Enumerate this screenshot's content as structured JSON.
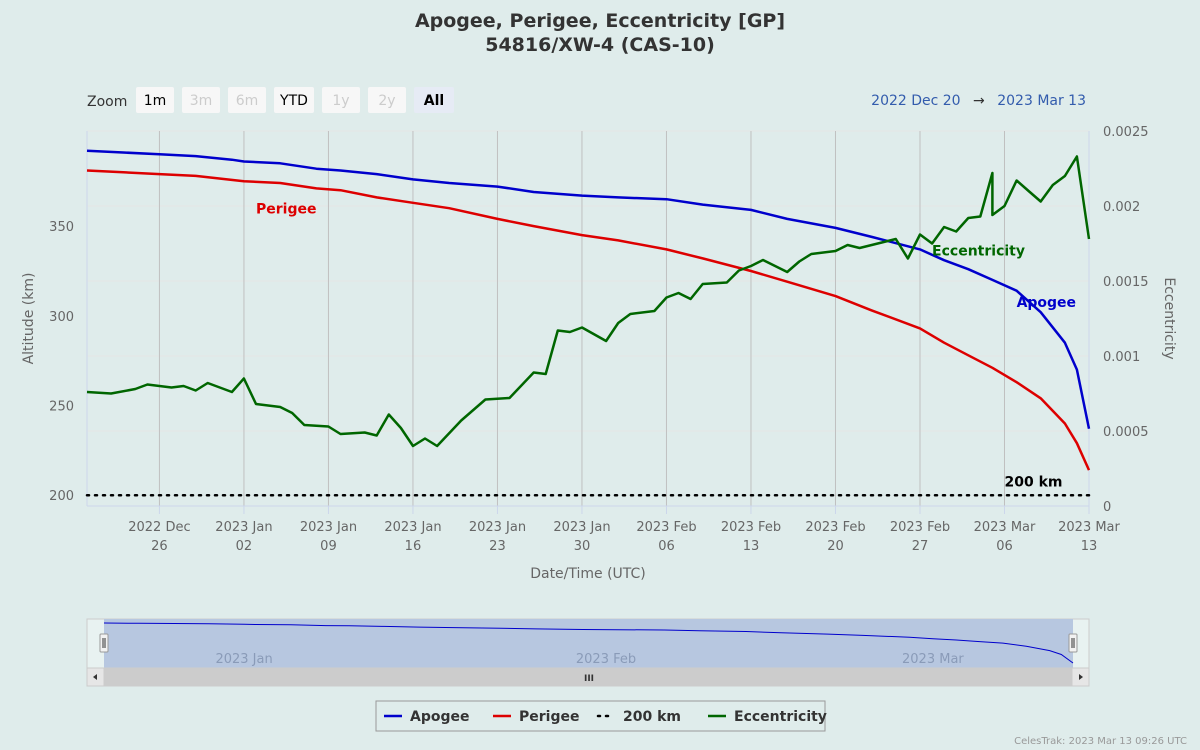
{
  "title": "Apogee, Perigee, Eccentricity [GP]",
  "subtitle": "54816/XW-4 (CAS-10)",
  "zoom": {
    "label": "Zoom",
    "buttons": [
      {
        "label": "1m",
        "state": "normal"
      },
      {
        "label": "3m",
        "state": "disabled"
      },
      {
        "label": "6m",
        "state": "disabled"
      },
      {
        "label": "YTD",
        "state": "normal"
      },
      {
        "label": "1y",
        "state": "disabled"
      },
      {
        "label": "2y",
        "state": "disabled"
      },
      {
        "label": "All",
        "state": "selected"
      }
    ]
  },
  "range": {
    "from": "2022 Dec 20",
    "arrow": "→",
    "to": "2023 Mar 13"
  },
  "credit": "CelesTrak: 2023 Mar 13 09:26 UTC",
  "colors": {
    "apogee": "#0000cc",
    "perigee": "#dd0000",
    "eccentricity": "#006600",
    "reference": "#000000",
    "grid": "#e6e6e6",
    "vgrid": "#c0c0c0",
    "navigator_fill": "#b7c7e0"
  },
  "chart_data": {
    "type": "line",
    "xlabel": "Date/Time (UTC)",
    "ylabel": "Altitude (km)",
    "y2label": "Eccentricity",
    "xlim": [
      "2022-12-20",
      "2023-03-13"
    ],
    "ylim": [
      194,
      403
    ],
    "y2lim": [
      0,
      0.0025
    ],
    "x_ticks": [
      {
        "date": "2022-12-26",
        "line1": "2022 Dec",
        "line2": "26"
      },
      {
        "date": "2023-01-02",
        "line1": "2023 Jan",
        "line2": "02"
      },
      {
        "date": "2023-01-09",
        "line1": "2023 Jan",
        "line2": "09"
      },
      {
        "date": "2023-01-16",
        "line1": "2023 Jan",
        "line2": "16"
      },
      {
        "date": "2023-01-23",
        "line1": "2023 Jan",
        "line2": "23"
      },
      {
        "date": "2023-01-30",
        "line1": "2023 Jan",
        "line2": "30"
      },
      {
        "date": "2023-02-06",
        "line1": "2023 Feb",
        "line2": "06"
      },
      {
        "date": "2023-02-13",
        "line1": "2023 Feb",
        "line2": "13"
      },
      {
        "date": "2023-02-20",
        "line1": "2023 Feb",
        "line2": "20"
      },
      {
        "date": "2023-02-27",
        "line1": "2023 Feb",
        "line2": "27"
      },
      {
        "date": "2023-03-06",
        "line1": "2023 Mar",
        "line2": "06"
      },
      {
        "date": "2023-03-13",
        "line1": "2023 Mar",
        "line2": "13"
      }
    ],
    "y_ticks": [
      "200",
      "250",
      "300",
      "350"
    ],
    "y_tick_values": [
      200,
      250,
      300,
      350
    ],
    "y2_ticks": [
      "0",
      "0.0005",
      "0.001",
      "0.0015",
      "0.002",
      "0.0025"
    ],
    "y2_tick_values": [
      0,
      0.0005,
      0.001,
      0.0015,
      0.002,
      0.0025
    ],
    "series": [
      {
        "name": "Apogee",
        "axis": "left",
        "color": "#0000cc",
        "label": "Apogee",
        "label_at": [
          "2023-03-07",
          305
        ],
        "points": [
          [
            "2022-12-20",
            392
          ],
          [
            "2022-12-23",
            391
          ],
          [
            "2022-12-26",
            390
          ],
          [
            "2022-12-29",
            389
          ],
          [
            "2023-01-01",
            387
          ],
          [
            "2023-01-02",
            386
          ],
          [
            "2023-01-05",
            385
          ],
          [
            "2023-01-08",
            382
          ],
          [
            "2023-01-10",
            381
          ],
          [
            "2023-01-13",
            379
          ],
          [
            "2023-01-16",
            376
          ],
          [
            "2023-01-19",
            374
          ],
          [
            "2023-01-23",
            372
          ],
          [
            "2023-01-26",
            369
          ],
          [
            "2023-01-30",
            367
          ],
          [
            "2023-02-02",
            366
          ],
          [
            "2023-02-06",
            365
          ],
          [
            "2023-02-09",
            362
          ],
          [
            "2023-02-13",
            359
          ],
          [
            "2023-02-16",
            354
          ],
          [
            "2023-02-20",
            349
          ],
          [
            "2023-02-23",
            344
          ],
          [
            "2023-02-27",
            337
          ],
          [
            "2023-03-01",
            331
          ],
          [
            "2023-03-03",
            326
          ],
          [
            "2023-03-05",
            320
          ],
          [
            "2023-03-07",
            314
          ],
          [
            "2023-03-09",
            302
          ],
          [
            "2023-03-11",
            285
          ],
          [
            "2023-03-12",
            270
          ],
          [
            "2023-03-13",
            237
          ]
        ]
      },
      {
        "name": "Perigee",
        "axis": "left",
        "color": "#dd0000",
        "label": "Perigee",
        "label_at": [
          "2023-01-03",
          357
        ],
        "points": [
          [
            "2022-12-20",
            381
          ],
          [
            "2022-12-23",
            380
          ],
          [
            "2022-12-26",
            379
          ],
          [
            "2022-12-29",
            378
          ],
          [
            "2023-01-02",
            375
          ],
          [
            "2023-01-05",
            374
          ],
          [
            "2023-01-08",
            371
          ],
          [
            "2023-01-10",
            370
          ],
          [
            "2023-01-13",
            366
          ],
          [
            "2023-01-16",
            363
          ],
          [
            "2023-01-19",
            360
          ],
          [
            "2023-01-23",
            354
          ],
          [
            "2023-01-26",
            350
          ],
          [
            "2023-01-30",
            345
          ],
          [
            "2023-02-02",
            342
          ],
          [
            "2023-02-06",
            337
          ],
          [
            "2023-02-09",
            332
          ],
          [
            "2023-02-13",
            325
          ],
          [
            "2023-02-16",
            319
          ],
          [
            "2023-02-20",
            311
          ],
          [
            "2023-02-23",
            303
          ],
          [
            "2023-02-27",
            293
          ],
          [
            "2023-03-01",
            285
          ],
          [
            "2023-03-03",
            278
          ],
          [
            "2023-03-05",
            271
          ],
          [
            "2023-03-07",
            263
          ],
          [
            "2023-03-09",
            254
          ],
          [
            "2023-03-11",
            240
          ],
          [
            "2023-03-12",
            229
          ],
          [
            "2023-03-13",
            214
          ]
        ]
      },
      {
        "name": "200 km",
        "axis": "left",
        "color": "#000000",
        "dash": true,
        "label": "200 km",
        "label_at": [
          "2023-03-06",
          205
        ],
        "points": [
          [
            "2022-12-20",
            200
          ],
          [
            "2023-03-13",
            200
          ]
        ]
      },
      {
        "name": "Eccentricity",
        "axis": "right",
        "color": "#006600",
        "label": "Eccentricity",
        "label_at": [
          "2023-02-28",
          0.00167
        ],
        "points": [
          [
            "2022-12-20",
            0.00076
          ],
          [
            "2022-12-22",
            0.00075
          ],
          [
            "2022-12-24",
            0.00078
          ],
          [
            "2022-12-25",
            0.00081
          ],
          [
            "2022-12-27",
            0.00079
          ],
          [
            "2022-12-28",
            0.0008
          ],
          [
            "2022-12-29",
            0.00077
          ],
          [
            "2022-12-30",
            0.00082
          ],
          [
            "2022-12-31",
            0.00079
          ],
          [
            "2023-01-01",
            0.00076
          ],
          [
            "2023-01-02",
            0.00085
          ],
          [
            "2023-01-03",
            0.00068
          ],
          [
            "2023-01-05",
            0.00066
          ],
          [
            "2023-01-06",
            0.00062
          ],
          [
            "2023-01-07",
            0.00054
          ],
          [
            "2023-01-09",
            0.00053
          ],
          [
            "2023-01-10",
            0.00048
          ],
          [
            "2023-01-12",
            0.00049
          ],
          [
            "2023-01-13",
            0.00047
          ],
          [
            "2023-01-14",
            0.00061
          ],
          [
            "2023-01-15",
            0.00052
          ],
          [
            "2023-01-16",
            0.0004
          ],
          [
            "2023-01-17",
            0.00045
          ],
          [
            "2023-01-18",
            0.0004
          ],
          [
            "2023-01-20",
            0.00057
          ],
          [
            "2023-01-22",
            0.00071
          ],
          [
            "2023-01-24",
            0.00072
          ],
          [
            "2023-01-26",
            0.00089
          ],
          [
            "2023-01-27",
            0.00088
          ],
          [
            "2023-01-28",
            0.00117
          ],
          [
            "2023-01-29",
            0.00116
          ],
          [
            "2023-01-30",
            0.00119
          ],
          [
            "2023-02-01",
            0.0011
          ],
          [
            "2023-02-02",
            0.00122
          ],
          [
            "2023-02-03",
            0.00128
          ],
          [
            "2023-02-05",
            0.0013
          ],
          [
            "2023-02-06",
            0.00139
          ],
          [
            "2023-02-07",
            0.00142
          ],
          [
            "2023-02-08",
            0.00138
          ],
          [
            "2023-02-09",
            0.00148
          ],
          [
            "2023-02-11",
            0.00149
          ],
          [
            "2023-02-12",
            0.00157
          ],
          [
            "2023-02-13",
            0.0016
          ],
          [
            "2023-02-14",
            0.00164
          ],
          [
            "2023-02-16",
            0.00156
          ],
          [
            "2023-02-17",
            0.00163
          ],
          [
            "2023-02-18",
            0.00168
          ],
          [
            "2023-02-20",
            0.0017
          ],
          [
            "2023-02-21",
            0.00174
          ],
          [
            "2023-02-22",
            0.00172
          ],
          [
            "2023-02-24",
            0.00176
          ],
          [
            "2023-02-25",
            0.00178
          ],
          [
            "2023-02-26",
            0.00165
          ],
          [
            "2023-02-27",
            0.00181
          ],
          [
            "2023-02-28",
            0.00175
          ],
          [
            "2023-03-01",
            0.00186
          ],
          [
            "2023-03-02",
            0.00183
          ],
          [
            "2023-03-03",
            0.00192
          ],
          [
            "2023-03-04",
            0.00193
          ],
          [
            "2023-03-05",
            0.00222
          ],
          [
            "2023-03-05",
            0.00194
          ],
          [
            "2023-03-06",
            0.002
          ],
          [
            "2023-03-07",
            0.00217
          ],
          [
            "2023-03-08",
            0.0021
          ],
          [
            "2023-03-09",
            0.00203
          ],
          [
            "2023-03-10",
            0.00214
          ],
          [
            "2023-03-11",
            0.0022
          ],
          [
            "2023-03-12",
            0.00233
          ],
          [
            "2023-03-13",
            0.00178
          ]
        ]
      }
    ],
    "legend": {
      "placement": "bottom",
      "items": [
        {
          "label": "Apogee",
          "color": "#0000cc",
          "style": "solid"
        },
        {
          "label": "Perigee",
          "color": "#dd0000",
          "style": "solid"
        },
        {
          "label": "200 km",
          "color": "#000000",
          "style": "dotted"
        },
        {
          "label": "Eccentricity",
          "color": "#006600",
          "style": "solid"
        }
      ]
    },
    "navigator": {
      "labels": [
        {
          "text": "2023 Jan",
          "date": "2023-01-01"
        },
        {
          "text": "2023 Feb",
          "date": "2023-02-01"
        },
        {
          "text": "2023 Mar",
          "date": "2023-03-01"
        }
      ],
      "scrollbar_grip": "III"
    }
  }
}
